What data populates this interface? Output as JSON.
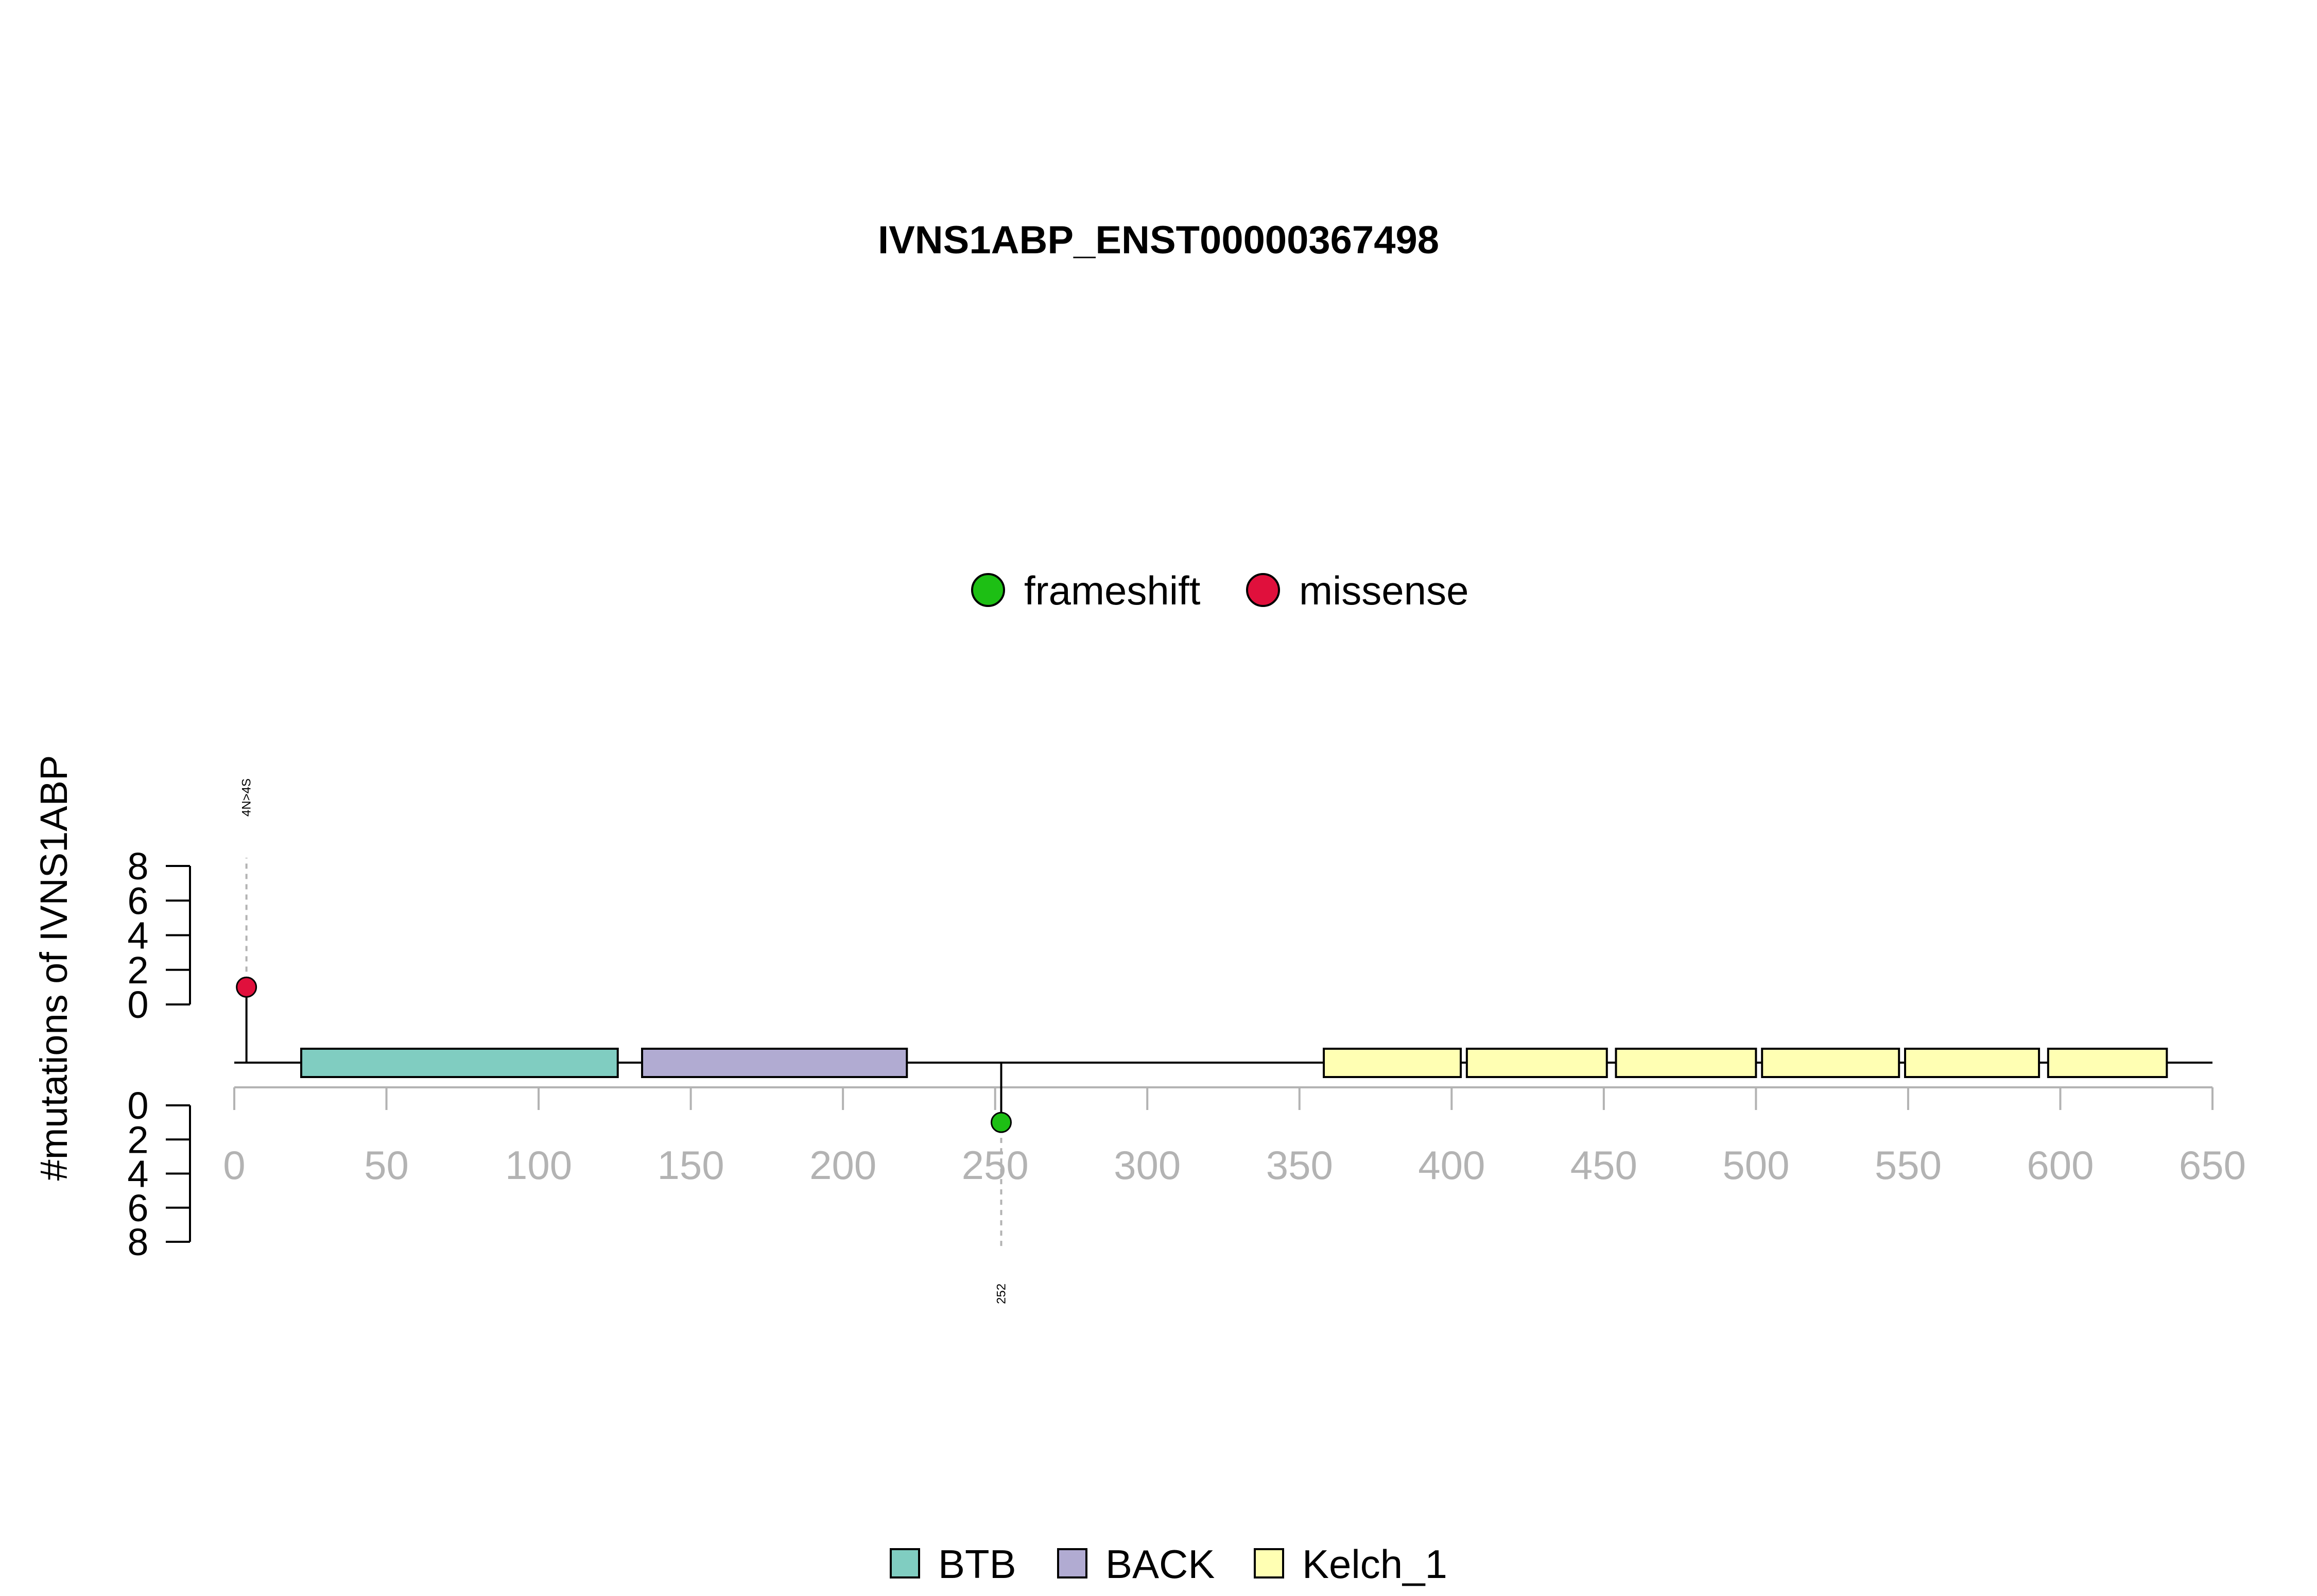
{
  "chart_data": {
    "type": "lollipop",
    "title": "IVNS1ABP_ENST00000367498",
    "ylabel": "#mutations of IVNS1ABP",
    "x_axis": {
      "ticks": [
        0,
        50,
        100,
        150,
        200,
        250,
        300,
        350,
        400,
        450,
        500,
        550,
        600,
        650
      ],
      "range": [
        0,
        650
      ]
    },
    "y_axis_top": {
      "ticks": [
        0,
        2,
        4,
        6,
        8
      ],
      "range": [
        0,
        8
      ]
    },
    "y_axis_bottom": {
      "ticks": [
        0,
        2,
        4,
        6,
        8
      ],
      "range": [
        0,
        8
      ]
    },
    "protein_length": 650,
    "mutation_legend": [
      {
        "label": "frameshift",
        "color": "#1dbf14"
      },
      {
        "label": "missense",
        "color": "#e0103c"
      }
    ],
    "domain_legend": [
      {
        "label": "BTB",
        "color": "#80cdc1"
      },
      {
        "label": "BACK",
        "color": "#b1abd2"
      },
      {
        "label": "Kelch_1",
        "color": "#ffffb3"
      }
    ],
    "domains": [
      {
        "name": "BTB",
        "start": 22,
        "end": 126
      },
      {
        "name": "BACK",
        "start": 134,
        "end": 221
      },
      {
        "name": "Kelch_1",
        "start": 358,
        "end": 403
      },
      {
        "name": "Kelch_1",
        "start": 405,
        "end": 451
      },
      {
        "name": "Kelch_1",
        "start": 454,
        "end": 500
      },
      {
        "name": "Kelch_1",
        "start": 502,
        "end": 547
      },
      {
        "name": "Kelch_1",
        "start": 549,
        "end": 593
      },
      {
        "name": "Kelch_1",
        "start": 596,
        "end": 635
      }
    ],
    "mutations": [
      {
        "position": 4,
        "count": 1,
        "type": "missense",
        "side": "top",
        "label": "4N>4S"
      },
      {
        "position": 252,
        "count": 1,
        "type": "frameshift",
        "side": "bottom",
        "label": "252"
      }
    ]
  }
}
